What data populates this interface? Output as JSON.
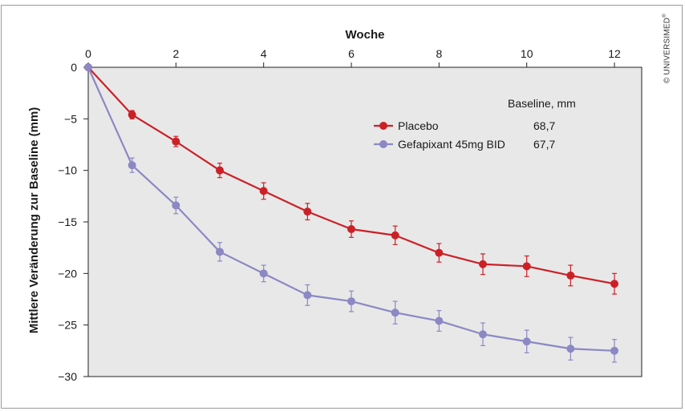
{
  "chart_data": {
    "type": "line",
    "xlabel": "Woche",
    "ylabel": "Mittlere Veränderung zur Baseline (mm)",
    "xlim": [
      0,
      12.6
    ],
    "ylim": [
      -30,
      0
    ],
    "xticks": [
      0,
      2,
      4,
      6,
      8,
      10,
      12
    ],
    "xtick_labels": [
      "0",
      "2",
      "4",
      "6",
      "8",
      "10",
      "12"
    ],
    "yticks": [
      0,
      -5,
      -10,
      -15,
      -20,
      -25,
      -30
    ],
    "ytick_labels": [
      "0",
      "−5",
      "−10",
      "−15",
      "−20",
      "−25",
      "−30"
    ],
    "grid": false,
    "legend": {
      "placement": "top-right",
      "header": "Baseline, mm"
    },
    "x": [
      0,
      1,
      2,
      3,
      4,
      5,
      6,
      7,
      8,
      9,
      10,
      11,
      12
    ],
    "series": [
      {
        "name": "Placebo",
        "baseline_label": "68,7",
        "color": "#cc2027",
        "values": [
          0,
          -4.6,
          -7.2,
          -10.0,
          -12.0,
          -14.0,
          -15.7,
          -16.3,
          -18.0,
          -19.1,
          -19.3,
          -20.2,
          -21.0
        ],
        "error": [
          0,
          0.4,
          0.5,
          0.7,
          0.8,
          0.8,
          0.8,
          0.9,
          0.9,
          1.0,
          1.0,
          1.0,
          1.0
        ]
      },
      {
        "name": "Gefapixant 45mg BID",
        "baseline_label": "67,7",
        "color": "#8b88c4",
        "values": [
          0,
          -9.5,
          -13.4,
          -17.9,
          -20.0,
          -22.1,
          -22.7,
          -23.8,
          -24.6,
          -25.9,
          -26.6,
          -27.3,
          -27.5
        ],
        "error": [
          0,
          0.7,
          0.8,
          0.9,
          0.8,
          1.0,
          1.0,
          1.1,
          1.0,
          1.1,
          1.1,
          1.1,
          1.1
        ]
      }
    ]
  },
  "copyright": {
    "text": "© UNIVERSIMED",
    "mark": "®"
  }
}
